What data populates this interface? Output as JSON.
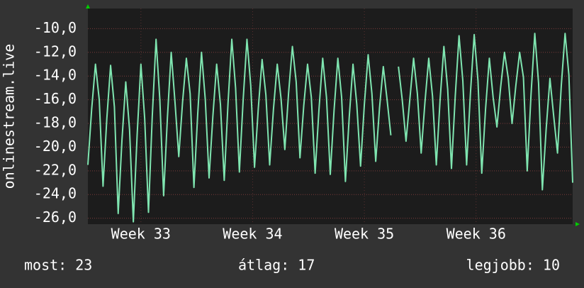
{
  "chart_data": {
    "type": "line",
    "y_label": "onlinestream.live",
    "series": [
      {
        "name": "onlinestream.live",
        "color": "#7fe5b0",
        "values": [
          -21.5,
          -16.8,
          -13.0,
          -16.0,
          -23.3,
          -17.6,
          -13.1,
          -16.6,
          -25.6,
          -19.4,
          -14.5,
          -18.5,
          -26.3,
          -19.0,
          -13.0,
          -17.6,
          -25.5,
          -17.4,
          -10.9,
          -16.0,
          -24.1,
          -17.5,
          -12.0,
          -16.2,
          -20.8,
          -16.2,
          -12.5,
          -15.5,
          -23.4,
          -17.2,
          -12.0,
          -16.0,
          -22.6,
          -17.4,
          -13.0,
          -16.4,
          -22.8,
          -16.3,
          -10.9,
          -15.0,
          -22.1,
          -16.0,
          -10.9,
          -14.8,
          -21.7,
          -16.7,
          -12.6,
          -15.6,
          -21.5,
          -16.8,
          -13.0,
          -15.9,
          -20.2,
          -15.4,
          -11.5,
          -14.5,
          -20.9,
          -16.5,
          -13.0,
          -15.8,
          -22.2,
          -16.9,
          -12.5,
          -15.8,
          -22.3,
          -16.9,
          -12.5,
          -15.8,
          -22.9,
          -17.5,
          -13.0,
          -16.4,
          -21.6,
          -16.4,
          -12.2,
          -15.5,
          -21.2,
          -16.7,
          -13.2,
          -16.0,
          -19.0,
          null,
          -13.2,
          -16.0,
          -19.5,
          -16.0,
          -12.5,
          -15.5,
          -20.5,
          -16.2,
          -12.5,
          -15.7,
          -21.5,
          -16.0,
          -11.5,
          -15.1,
          -21.8,
          -15.7,
          -10.6,
          -14.4,
          -21.5,
          -15.5,
          -10.5,
          -14.4,
          -22.2,
          -16.8,
          -12.5,
          -15.8,
          -18.3,
          -14.9,
          -12.0,
          -14.2,
          -18.0,
          -14.8,
          -12.0,
          -14.1,
          -22.0,
          -15.6,
          -10.4,
          -14.6,
          -23.6,
          -18.5,
          -14.2,
          -17.4,
          -20.5,
          -14.8,
          -10.4,
          -13.9,
          -23.0
        ]
      }
    ],
    "xlim": [
      0,
      128
    ],
    "xticks": [
      {
        "value": 14,
        "label": "Week 33"
      },
      {
        "value": 43.5,
        "label": "Week 34"
      },
      {
        "value": 73,
        "label": "Week 35"
      },
      {
        "value": 102.5,
        "label": "Week 36"
      }
    ],
    "ylim": [
      -26.5,
      -8.3
    ],
    "yticks": [
      {
        "value": -10,
        "label": "-10,0"
      },
      {
        "value": -12,
        "label": "-12,0"
      },
      {
        "value": -14,
        "label": "-14,0"
      },
      {
        "value": -16,
        "label": "-16,0"
      },
      {
        "value": -18,
        "label": "-18,0"
      },
      {
        "value": -20,
        "label": "-20,0"
      },
      {
        "value": -22,
        "label": "-22,0"
      },
      {
        "value": -24,
        "label": "-24,0"
      },
      {
        "value": -26,
        "label": "-26,0"
      }
    ],
    "grid": true,
    "footer": [
      "most: 23",
      "átlag: 17",
      "legjobb: 10"
    ]
  }
}
